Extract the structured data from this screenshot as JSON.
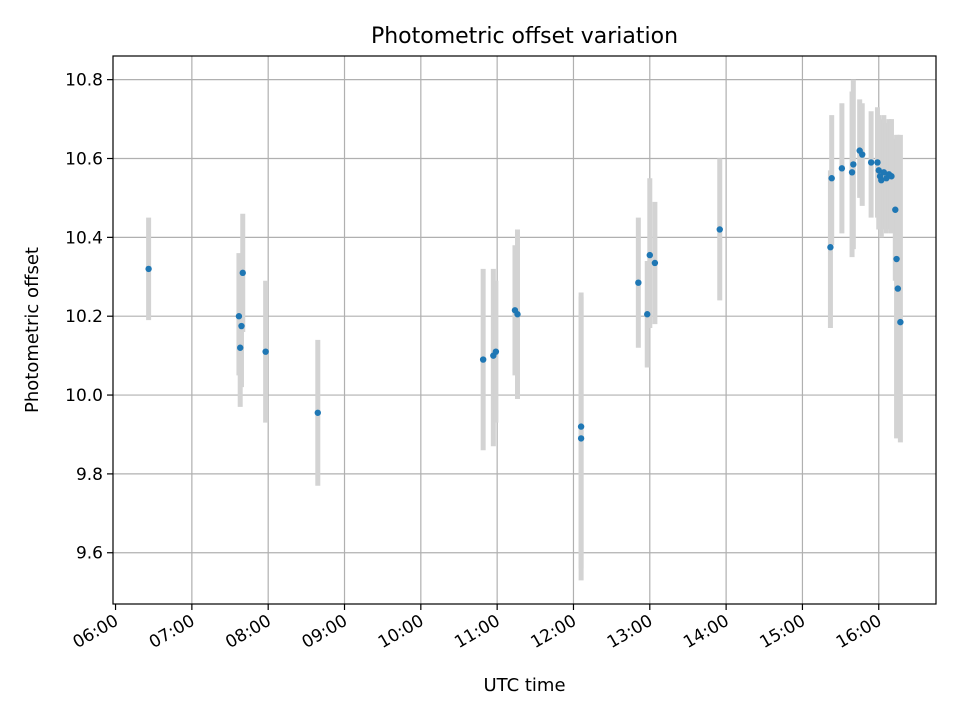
{
  "chart_data": {
    "type": "scatter",
    "title": "Photometric offset variation",
    "xlabel": "UTC time",
    "ylabel": "Photometric offset",
    "xlim": [
      "05:58",
      "16:45"
    ],
    "ylim": [
      9.47,
      10.86
    ],
    "x_ticks": [
      "06:00",
      "07:00",
      "08:00",
      "09:00",
      "10:00",
      "11:00",
      "12:00",
      "13:00",
      "14:00",
      "15:00",
      "16:00"
    ],
    "y_ticks": [
      9.6,
      9.8,
      10.0,
      10.2,
      10.4,
      10.6,
      10.8
    ],
    "y_tick_labels": [
      "9.6",
      "9.8",
      "10.0",
      "10.2",
      "10.4",
      "10.6",
      "10.8"
    ],
    "grid": true,
    "marker_color": "#1f77b4",
    "errorbar_color": "#d3d3d3",
    "points": [
      {
        "t": "06:26",
        "y": 10.32,
        "lo": 10.19,
        "hi": 10.45
      },
      {
        "t": "07:37",
        "y": 10.2,
        "lo": 10.05,
        "hi": 10.36
      },
      {
        "t": "07:38",
        "y": 10.12,
        "lo": 9.97,
        "hi": 10.28
      },
      {
        "t": "07:39",
        "y": 10.175,
        "lo": 10.02,
        "hi": 10.33
      },
      {
        "t": "07:40",
        "y": 10.31,
        "lo": 10.16,
        "hi": 10.46
      },
      {
        "t": "07:58",
        "y": 10.11,
        "lo": 9.93,
        "hi": 10.29
      },
      {
        "t": "08:39",
        "y": 9.955,
        "lo": 9.77,
        "hi": 10.14
      },
      {
        "t": "10:49",
        "y": 10.09,
        "lo": 9.86,
        "hi": 10.32
      },
      {
        "t": "10:57",
        "y": 10.1,
        "lo": 9.87,
        "hi": 10.32
      },
      {
        "t": "10:59",
        "y": 10.11,
        "lo": 9.93,
        "hi": 10.29
      },
      {
        "t": "11:14",
        "y": 10.215,
        "lo": 10.05,
        "hi": 10.38
      },
      {
        "t": "11:16",
        "y": 10.205,
        "lo": 9.99,
        "hi": 10.42
      },
      {
        "t": "12:06",
        "y": 9.92,
        "lo": 9.56,
        "hi": 10.26
      },
      {
        "t": "12:06",
        "y": 9.89,
        "lo": 9.53,
        "hi": 10.25
      },
      {
        "t": "12:51",
        "y": 10.285,
        "lo": 10.12,
        "hi": 10.45
      },
      {
        "t": "12:58",
        "y": 10.205,
        "lo": 10.07,
        "hi": 10.34
      },
      {
        "t": "13:00",
        "y": 10.355,
        "lo": 10.17,
        "hi": 10.55
      },
      {
        "t": "13:04",
        "y": 10.335,
        "lo": 10.18,
        "hi": 10.49
      },
      {
        "t": "13:55",
        "y": 10.42,
        "lo": 10.24,
        "hi": 10.6
      },
      {
        "t": "15:22",
        "y": 10.375,
        "lo": 10.17,
        "hi": 10.57
      },
      {
        "t": "15:23",
        "y": 10.55,
        "lo": 10.38,
        "hi": 10.71
      },
      {
        "t": "15:31",
        "y": 10.575,
        "lo": 10.41,
        "hi": 10.74
      },
      {
        "t": "15:39",
        "y": 10.565,
        "lo": 10.35,
        "hi": 10.77
      },
      {
        "t": "15:40",
        "y": 10.585,
        "lo": 10.37,
        "hi": 10.8
      },
      {
        "t": "15:45",
        "y": 10.62,
        "lo": 10.5,
        "hi": 10.75
      },
      {
        "t": "15:47",
        "y": 10.61,
        "lo": 10.48,
        "hi": 10.74
      },
      {
        "t": "15:54",
        "y": 10.59,
        "lo": 10.45,
        "hi": 10.72
      },
      {
        "t": "15:59",
        "y": 10.59,
        "lo": 10.45,
        "hi": 10.73
      },
      {
        "t": "16:00",
        "y": 10.57,
        "lo": 10.42,
        "hi": 10.71
      },
      {
        "t": "16:01",
        "y": 10.555,
        "lo": 10.42,
        "hi": 10.7
      },
      {
        "t": "16:02",
        "y": 10.545,
        "lo": 10.4,
        "hi": 10.69
      },
      {
        "t": "16:04",
        "y": 10.565,
        "lo": 10.42,
        "hi": 10.71
      },
      {
        "t": "16:06",
        "y": 10.55,
        "lo": 10.41,
        "hi": 10.69
      },
      {
        "t": "16:08",
        "y": 10.56,
        "lo": 10.42,
        "hi": 10.7
      },
      {
        "t": "16:10",
        "y": 10.555,
        "lo": 10.41,
        "hi": 10.7
      },
      {
        "t": "16:13",
        "y": 10.47,
        "lo": 10.29,
        "hi": 10.65
      },
      {
        "t": "16:14",
        "y": 10.345,
        "lo": 9.89,
        "hi": 10.66
      },
      {
        "t": "16:15",
        "y": 10.27,
        "lo": 9.9,
        "hi": 10.66
      },
      {
        "t": "16:17",
        "y": 10.185,
        "lo": 9.88,
        "hi": 10.66
      }
    ]
  }
}
